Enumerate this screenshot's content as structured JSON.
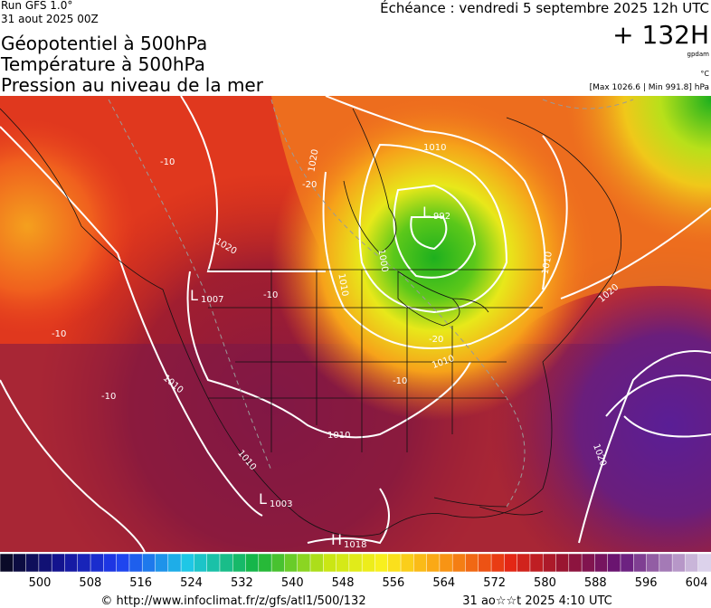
{
  "header": {
    "run": "Run GFS 1.0°",
    "run_date": "31 aout 2025 00Z",
    "forecast": "Échéance : vendredi 5 septembre 2025 12h UTC",
    "titles": [
      "Géopotentiel à 500hPa",
      "Température à 500hPa",
      "Pression au niveau de la mer"
    ],
    "lead": "+ 132H",
    "height_unit": "gpdam",
    "temperature_unit": "°C",
    "pressure_range": "[Max 1026.6 | Min 991.8] hPa"
  },
  "map": {
    "centers": [
      {
        "letter": "L",
        "value": "992"
      },
      {
        "letter": "L",
        "value": "1007"
      },
      {
        "letter": "L",
        "value": "1003"
      },
      {
        "letter": "H",
        "value": "1018"
      }
    ],
    "isobar_labels": [
      "1010",
      "1020",
      "1000",
      "1010",
      "1010",
      "1010",
      "1010",
      "1010",
      "1010",
      "1020",
      "1020",
      "1020"
    ],
    "temperature_labels": [
      "-20",
      "-10",
      "-10",
      "-10",
      "-10",
      "-20",
      "-10"
    ]
  },
  "legend": {
    "labels": [
      "500",
      "508",
      "516",
      "524",
      "532",
      "540",
      "548",
      "556",
      "564",
      "572",
      "580",
      "588",
      "596",
      "604"
    ]
  },
  "footer": {
    "source": "© http://www.infoclimat.fr/z/gfs/atl1/500/132",
    "timestamp": "31 ao☆☆t 2025  4:10 UTC"
  }
}
